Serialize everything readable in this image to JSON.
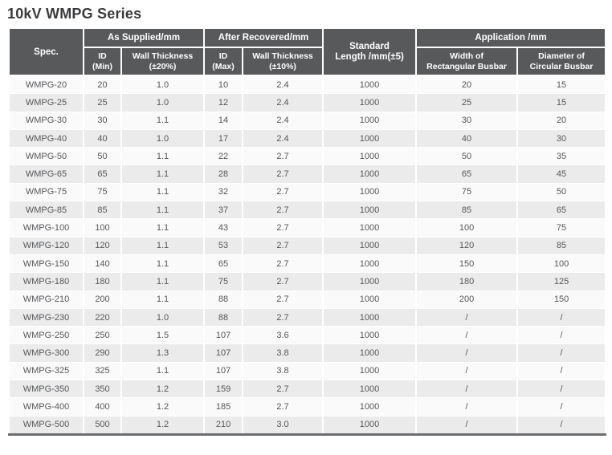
{
  "page_title": "10kV WMPG Series",
  "colors": {
    "header_bg": "#58595b",
    "row_light": "#fafafa",
    "row_dark": "#ebebeb",
    "title_text": "#3a3a3c",
    "body_text": "#56575a",
    "bottom_border": "#6d6e70"
  },
  "table": {
    "header": {
      "spec": "Spec.",
      "groups": [
        {
          "label": "As Supplied/mm"
        },
        {
          "label": "After Recovered/mm"
        },
        {
          "label": "Application /mm"
        }
      ],
      "standard_length": {
        "line1": "Standard",
        "line2": "Length /mm(±5)"
      },
      "subheaders": [
        {
          "line1": "ID",
          "line2": "(Min)"
        },
        {
          "line1": "Wall Thickness",
          "line2": "(±20%)"
        },
        {
          "line1": "ID",
          "line2": "(Max)"
        },
        {
          "line1": "Wall Thickness",
          "line2": "(±10%)"
        },
        {
          "line1": "Width of",
          "line2": "Rectangular Busbar"
        },
        {
          "line1": "Diameter of",
          "line2": "Circular Busbar"
        }
      ]
    },
    "rows": [
      [
        "WMPG-20",
        "20",
        "1.0",
        "10",
        "2.4",
        "1000",
        "20",
        "15"
      ],
      [
        "WMPG-25",
        "25",
        "1.0",
        "12",
        "2.4",
        "1000",
        "25",
        "15"
      ],
      [
        "WMPG-30",
        "30",
        "1.1",
        "14",
        "2.4",
        "1000",
        "30",
        "20"
      ],
      [
        "WMPG-40",
        "40",
        "1.0",
        "17",
        "2.4",
        "1000",
        "40",
        "30"
      ],
      [
        "WMPG-50",
        "50",
        "1.1",
        "22",
        "2.7",
        "1000",
        "50",
        "35"
      ],
      [
        "WMPG-65",
        "65",
        "1.1",
        "28",
        "2.7",
        "1000",
        "65",
        "45"
      ],
      [
        "WMPG-75",
        "75",
        "1.1",
        "32",
        "2.7",
        "1000",
        "75",
        "50"
      ],
      [
        "WMPG-85",
        "85",
        "1.1",
        "37",
        "2.7",
        "1000",
        "85",
        "65"
      ],
      [
        "WMPG-100",
        "100",
        "1.1",
        "43",
        "2.7",
        "1000",
        "100",
        "75"
      ],
      [
        "WMPG-120",
        "120",
        "1.1",
        "53",
        "2.7",
        "1000",
        "120",
        "85"
      ],
      [
        "WMPG-150",
        "140",
        "1.1",
        "65",
        "2.7",
        "1000",
        "150",
        "100"
      ],
      [
        "WMPG-180",
        "180",
        "1.1",
        "75",
        "2.7",
        "1000",
        "180",
        "125"
      ],
      [
        "WMPG-210",
        "200",
        "1.1",
        "88",
        "2.7",
        "1000",
        "200",
        "150"
      ],
      [
        "WMPG-230",
        "220",
        "1.0",
        "88",
        "2.7",
        "1000",
        "/",
        "/"
      ],
      [
        "WMPG-250",
        "250",
        "1.5",
        "107",
        "3.6",
        "1000",
        "/",
        "/"
      ],
      [
        "WMPG-300",
        "290",
        "1.3",
        "107",
        "3.8",
        "1000",
        "/",
        "/"
      ],
      [
        "WMPG-325",
        "325",
        "1.1",
        "107",
        "3.8",
        "1000",
        "/",
        "/"
      ],
      [
        "WMPG-350",
        "350",
        "1.2",
        "159",
        "2.7",
        "1000",
        "/",
        "/"
      ],
      [
        "WMPG-400",
        "400",
        "1.2",
        "185",
        "2.7",
        "1000",
        "/",
        "/"
      ],
      [
        "WMPG-500",
        "500",
        "1.2",
        "210",
        "3.0",
        "1000",
        "/",
        "/"
      ]
    ]
  }
}
